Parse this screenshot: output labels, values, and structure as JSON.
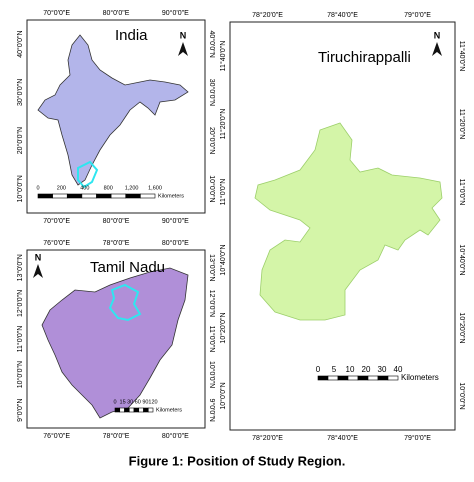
{
  "caption": "Figure 1: Position of Study Region.",
  "panels": [
    {
      "title": "India",
      "north": "N",
      "lon_labels": [
        "70°0'0\"E",
        "80°0'0\"E",
        "90°0'0\"E"
      ],
      "lat_labels": [
        "40°0'0\"N",
        "30°0'0\"N",
        "20°0'0\"N",
        "10°0'0\"N"
      ],
      "scale_labels": [
        "0",
        "200",
        "400",
        "800",
        "1,200",
        "1,600"
      ],
      "scale_unit": "Kilometers"
    },
    {
      "title": "Tamil Nadu",
      "north": "N",
      "lon_labels": [
        "76°0'0\"E",
        "78°0'0\"E",
        "80°0'0\"E"
      ],
      "lat_labels": [
        "13°0'0\"N",
        "12°0'0\"N",
        "11°0'0\"N",
        "10°0'0\"N",
        "9°0'0\"N"
      ],
      "scale_labels": [
        "0",
        "15",
        "30",
        "60",
        "90",
        "120"
      ],
      "scale_unit": "Kilometers"
    },
    {
      "title": "Tiruchirappalli",
      "north": "N",
      "lon_labels": [
        "78°20'0\"E",
        "78°40'0\"E",
        "79°0'0\"E"
      ],
      "lat_labels": [
        "11°40'0\"N",
        "11°20'0\"N",
        "11°0'0\"N",
        "10°40'0\"N",
        "10°20'0\"N",
        "10°0'0\"N"
      ],
      "scale_labels": [
        "0",
        "5",
        "10",
        "20",
        "30",
        "40"
      ],
      "scale_unit": "Kilometers"
    }
  ]
}
